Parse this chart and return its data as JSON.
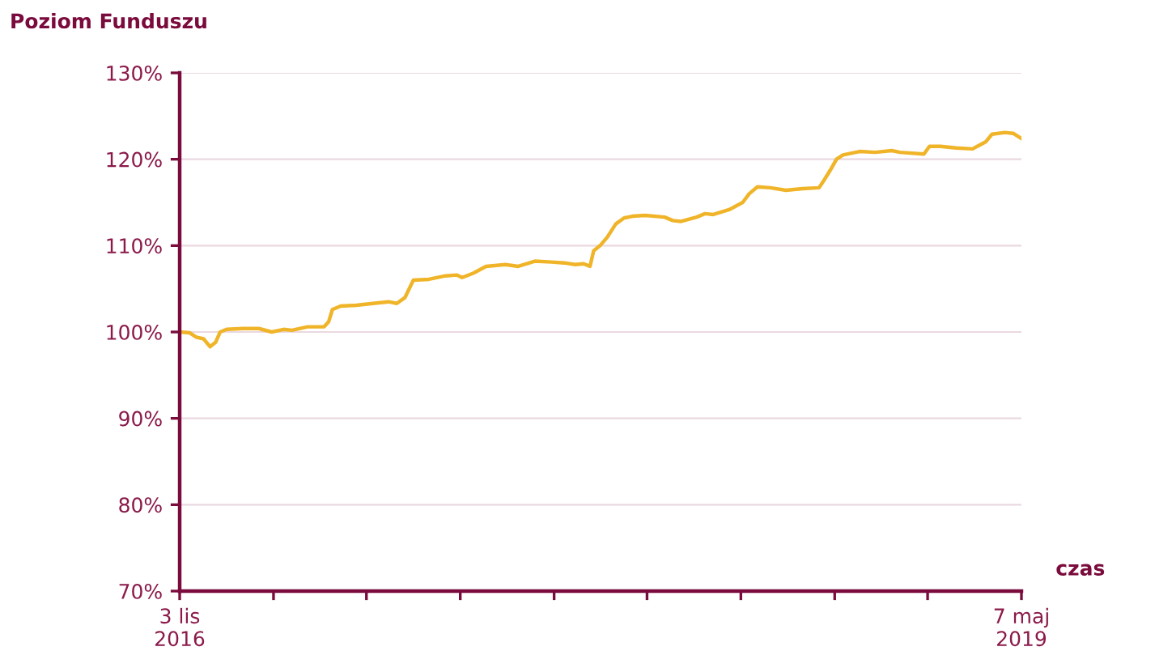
{
  "chart_data": {
    "type": "line",
    "title": "Poziom Funduszu",
    "xlabel": "czas",
    "x": [
      "2016-11-03",
      "2016-11-14",
      "2016-11-21",
      "2016-11-29",
      "2016-12-06",
      "2016-12-12",
      "2016-12-17",
      "2016-12-24",
      "2017-01-11",
      "2017-01-28",
      "2017-02-11",
      "2017-02-24",
      "2017-03-05",
      "2017-03-22",
      "2017-04-09",
      "2017-04-14",
      "2017-04-18",
      "2017-04-27",
      "2017-05-14",
      "2017-06-01",
      "2017-06-18",
      "2017-06-27",
      "2017-07-06",
      "2017-07-15",
      "2017-08-01",
      "2017-08-19",
      "2017-08-31",
      "2017-09-06",
      "2017-09-18",
      "2017-10-02",
      "2017-10-23",
      "2017-11-06",
      "2017-11-24",
      "2017-12-12",
      "2017-12-26",
      "2018-01-07",
      "2018-01-16",
      "2018-01-23",
      "2018-01-27",
      "2018-02-03",
      "2018-02-11",
      "2018-02-20",
      "2018-03-01",
      "2018-03-10",
      "2018-03-24",
      "2018-04-14",
      "2018-04-23",
      "2018-05-02",
      "2018-05-19",
      "2018-05-28",
      "2018-06-06",
      "2018-06-24",
      "2018-07-08",
      "2018-07-15",
      "2018-07-24",
      "2018-08-07",
      "2018-08-24",
      "2018-09-11",
      "2018-09-29",
      "2018-10-04",
      "2018-10-11",
      "2018-10-18",
      "2018-10-25",
      "2018-11-12",
      "2018-11-29",
      "2018-12-17",
      "2018-12-26",
      "2019-01-21",
      "2019-01-27",
      "2019-02-08",
      "2019-02-25",
      "2019-03-15",
      "2019-03-20",
      "2019-03-29",
      "2019-04-05",
      "2019-04-19",
      "2019-04-28",
      "2019-05-07"
    ],
    "series": [
      {
        "color": "#f0b429",
        "values": [
          100.0,
          99.9,
          99.4,
          99.2,
          98.3,
          98.8,
          100.0,
          100.3,
          100.4,
          100.4,
          100.0,
          100.3,
          100.2,
          100.6,
          100.6,
          101.2,
          102.6,
          103.0,
          103.1,
          103.3,
          103.5,
          103.3,
          104.0,
          106.0,
          106.1,
          106.5,
          106.6,
          106.3,
          106.8,
          107.6,
          107.8,
          107.6,
          108.2,
          108.1,
          108.0,
          107.8,
          107.9,
          107.6,
          109.4,
          110.0,
          111.0,
          112.5,
          113.2,
          113.4,
          113.5,
          113.3,
          112.9,
          112.8,
          113.3,
          113.7,
          113.6,
          114.2,
          115.0,
          116.0,
          116.8,
          116.7,
          116.4,
          116.6,
          116.7,
          117.5,
          118.7,
          120.0,
          120.5,
          120.9,
          120.8,
          121.0,
          120.8,
          120.6,
          121.5,
          121.5,
          121.3,
          121.2,
          121.5,
          122.0,
          122.9,
          123.1,
          123.0,
          122.4
        ]
      }
    ],
    "xlim": [
      "2016-11-03",
      "2019-05-07"
    ],
    "xticks": [
      {
        "value": "2016-11-03",
        "label": "3 lis\n2016"
      },
      {
        "value": "2017-02-13",
        "label": null
      },
      {
        "value": "2017-05-25",
        "label": null
      },
      {
        "value": "2017-09-04",
        "label": null
      },
      {
        "value": "2017-12-15",
        "label": null
      },
      {
        "value": "2018-03-26",
        "label": null
      },
      {
        "value": "2018-07-06",
        "label": null
      },
      {
        "value": "2018-10-16",
        "label": null
      },
      {
        "value": "2019-01-25",
        "label": null
      },
      {
        "value": "2019-05-07",
        "label": "7 maj\n2019"
      }
    ],
    "ylim": [
      70,
      130
    ],
    "yticks": [
      {
        "value": 70,
        "label": "70%"
      },
      {
        "value": 80,
        "label": "80%"
      },
      {
        "value": 90,
        "label": "90%"
      },
      {
        "value": 100,
        "label": "100%"
      },
      {
        "value": 110,
        "label": "110%"
      },
      {
        "value": 120,
        "label": "120%"
      },
      {
        "value": 130,
        "label": "130%"
      }
    ],
    "grid": "y",
    "legend": false,
    "marker": "none",
    "line_style": "solid"
  }
}
